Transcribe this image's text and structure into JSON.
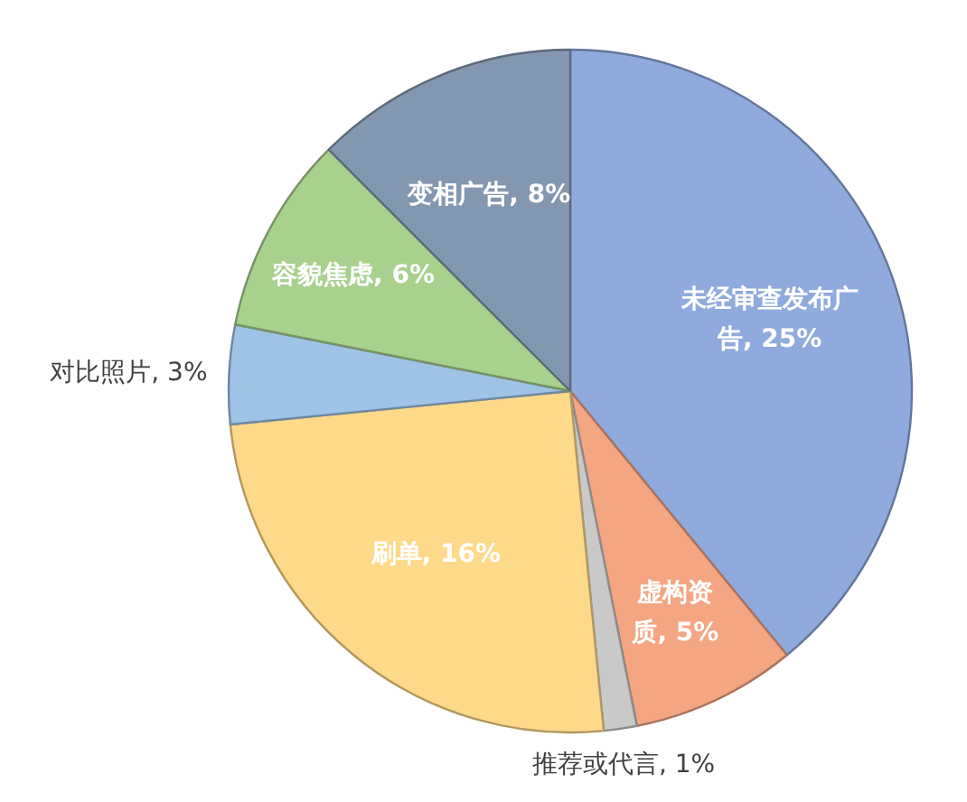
{
  "chart_data": {
    "type": "pie",
    "categories": [
      "未经审查发布广告",
      "虚构资质",
      "推荐或代言",
      "刷单",
      "对比照片",
      "容貌焦虑",
      "变相广告"
    ],
    "values": [
      25,
      5,
      1,
      16,
      3,
      6,
      8
    ],
    "colors": [
      "#8faadc",
      "#f4a582",
      "#c9c9c9",
      "#ffd98a",
      "#9dc3e6",
      "#a9d18e",
      "#8497b0"
    ],
    "data_labels": true,
    "value_labels": [
      "25%",
      "5%",
      "1%",
      "16%",
      "3%",
      "6%",
      "8%"
    ]
  }
}
